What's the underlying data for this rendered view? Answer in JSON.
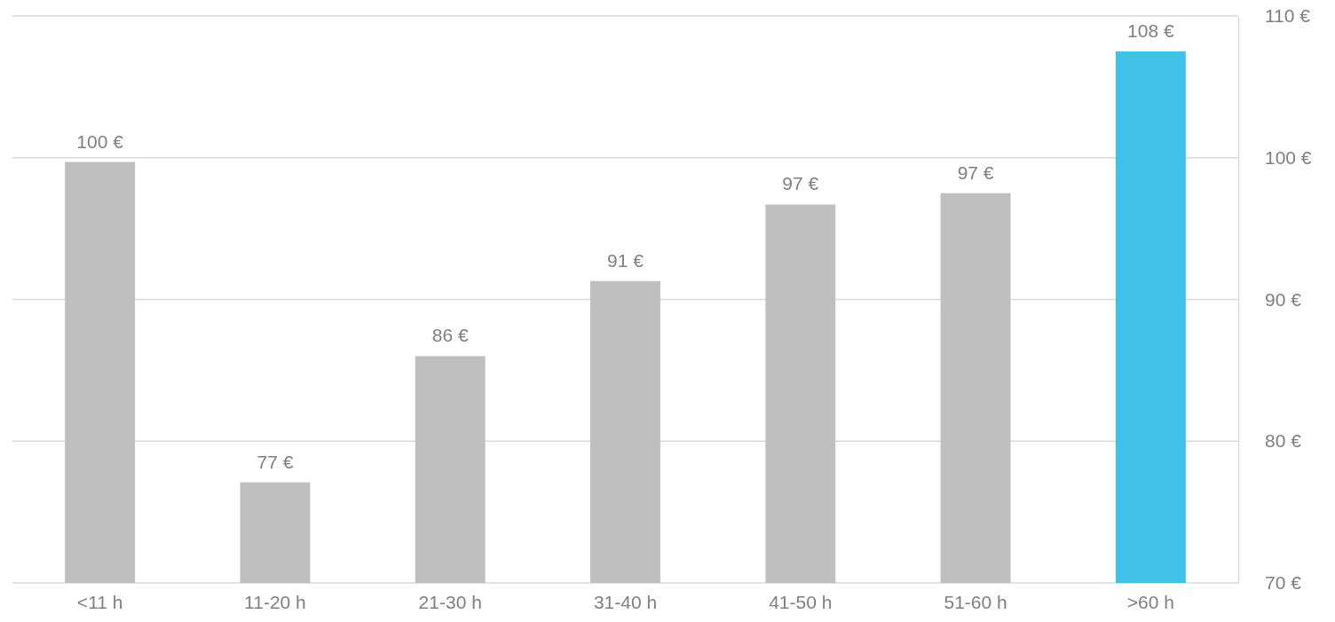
{
  "chart_data": {
    "type": "bar",
    "categories": [
      "<11 h",
      "11-20 h",
      "21-30 h",
      "31-40 h",
      "41-50 h",
      "51-60 h",
      ">60 h"
    ],
    "values": [
      99.7,
      77.1,
      86.0,
      91.3,
      96.7,
      97.5,
      107.5
    ],
    "colors": [
      "#bfbfbf",
      "#bfbfbf",
      "#bfbfbf",
      "#bfbfbf",
      "#bfbfbf",
      "#bfbfbf",
      "#41c0ea"
    ],
    "value_labels": [
      "100 €",
      "77 €",
      "86 €",
      "91 €",
      "97 €",
      "97 €",
      "108 €"
    ],
    "ylim": [
      70,
      110
    ],
    "yticks": [
      {
        "value": 70,
        "label": "70 €"
      },
      {
        "value": 80,
        "label": "80 €"
      },
      {
        "value": 90,
        "label": "90 €"
      },
      {
        "value": 100,
        "label": "100 €"
      },
      {
        "value": 110,
        "label": "110 €"
      }
    ],
    "grid": "y"
  }
}
